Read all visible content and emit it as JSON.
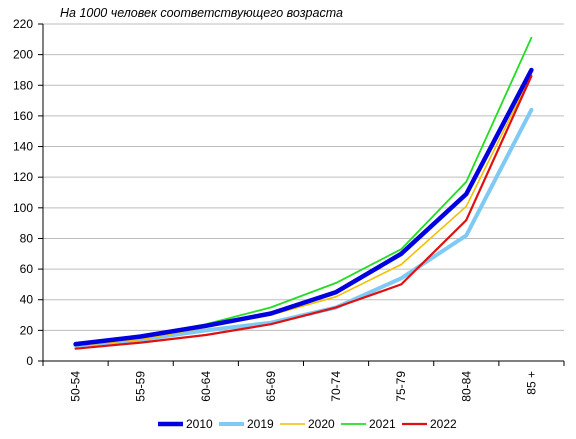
{
  "chart_data": {
    "type": "line",
    "title": "На 1000 человек соответствующего возраста",
    "xlabel": "",
    "ylabel": "",
    "categories": [
      "50-54",
      "55-59",
      "60-64",
      "65-69",
      "70-74",
      "75-79",
      "80-84",
      "85 +"
    ],
    "ylim": [
      0,
      220
    ],
    "yticks": [
      0,
      20,
      40,
      60,
      80,
      100,
      120,
      140,
      160,
      180,
      200,
      220
    ],
    "grid": "horizontal",
    "legend_position": "bottom",
    "series": [
      {
        "name": "2010",
        "color": "#0000e0",
        "values": [
          11,
          16,
          23,
          31,
          45,
          70,
          109,
          190
        ]
      },
      {
        "name": "2019",
        "color": "#7fcaf5",
        "values": [
          10,
          14,
          20,
          25,
          35,
          54,
          82,
          164
        ]
      },
      {
        "name": "2020",
        "color": "#f0c000",
        "values": [
          10,
          14,
          22,
          30,
          42,
          63,
          101,
          187
        ]
      },
      {
        "name": "2021",
        "color": "#22dd22",
        "values": [
          11,
          16,
          24,
          35,
          51,
          73,
          117,
          211
        ]
      },
      {
        "name": "2022",
        "color": "#e01010",
        "values": [
          8,
          12,
          17,
          24,
          35,
          50,
          92,
          186
        ]
      }
    ]
  }
}
